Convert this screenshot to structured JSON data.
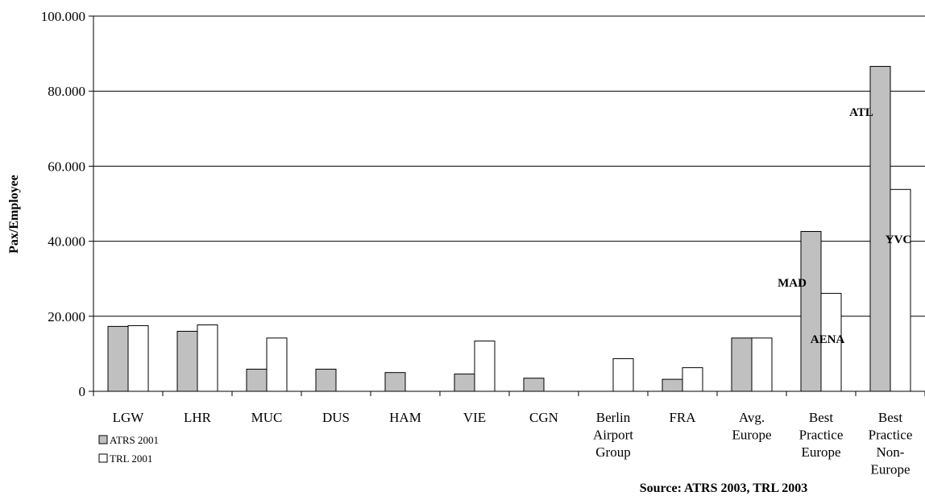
{
  "chart_data": {
    "type": "bar",
    "title": "",
    "xlabel": "",
    "ylabel": "Pax/Employee",
    "ylim": [
      0,
      100000
    ],
    "yticks": [
      0,
      20000,
      40000,
      60000,
      80000,
      100000
    ],
    "ytick_labels": [
      "0",
      "20.000",
      "40.000",
      "60.000",
      "80.000",
      "100.000"
    ],
    "grid": "horizontal",
    "legend_position": "bottom-left",
    "categories": [
      [
        "LGW"
      ],
      [
        "LHR"
      ],
      [
        "MUC"
      ],
      [
        "DUS"
      ],
      [
        "HAM"
      ],
      [
        "VIE"
      ],
      [
        "CGN"
      ],
      [
        "Berlin",
        "Airport",
        "Group"
      ],
      [
        "FRA"
      ],
      [
        "Avg.",
        "Europe"
      ],
      [
        "Best",
        "Practice",
        "Europe"
      ],
      [
        "Best",
        "Practice",
        "Non-",
        "Europe"
      ]
    ],
    "series": [
      {
        "name": "ATRS 2001",
        "color": "#c0c0c0",
        "values": [
          17300,
          16000,
          5900,
          5900,
          5000,
          4600,
          3500,
          null,
          3200,
          14200,
          42600,
          86600
        ]
      },
      {
        "name": "TRL 2001",
        "color": "#ffffff",
        "values": [
          17500,
          17700,
          14200,
          null,
          null,
          13400,
          null,
          8700,
          6300,
          14200,
          26100,
          53800
        ]
      }
    ],
    "annotations": [
      {
        "text": "ATL",
        "category_index": 11,
        "series_index": 0
      },
      {
        "text": "YVC",
        "category_index": 11,
        "series_index": 1
      },
      {
        "text": "MAD",
        "category_index": 10,
        "series_index": 0
      },
      {
        "text": "AENA",
        "category_index": 10,
        "series_index": 1
      }
    ],
    "source_note": "Source: ATRS 2003, TRL 2003"
  }
}
